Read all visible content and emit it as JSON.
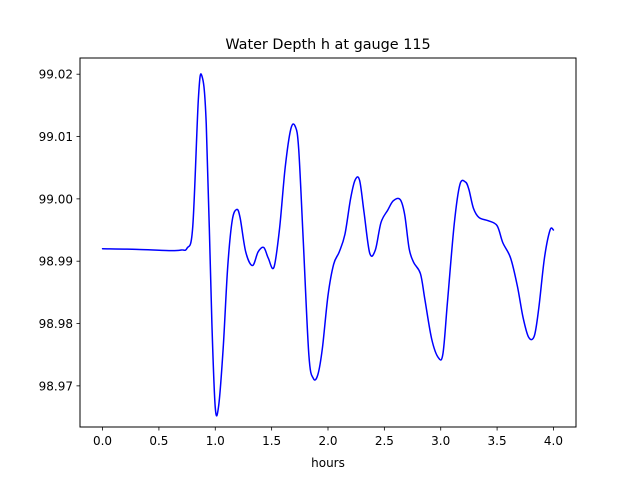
{
  "chart_data": {
    "type": "line",
    "title": "Water Depth h at gauge 115",
    "xlabel": "hours",
    "ylabel": "",
    "xlim": [
      -0.2,
      4.2
    ],
    "ylim": [
      98.9634,
      99.0226
    ],
    "xticks": [
      "0.0",
      "0.5",
      "1.0",
      "1.5",
      "2.0",
      "2.5",
      "3.0",
      "3.5",
      "4.0"
    ],
    "xtick_values": [
      0,
      0.5,
      1.0,
      1.5,
      2.0,
      2.5,
      3.0,
      3.5,
      4.0
    ],
    "yticks": [
      "98.97",
      "98.98",
      "98.99",
      "99.00",
      "99.01",
      "99.02"
    ],
    "ytick_values": [
      98.97,
      98.98,
      98.99,
      99.0,
      99.01,
      99.02
    ],
    "grid": false,
    "series": [
      {
        "color": "#0000ff",
        "x": [
          0.0,
          0.3,
          0.6,
          0.7,
          0.75,
          0.8,
          0.85,
          0.88,
          0.92,
          0.97,
          1.0,
          1.03,
          1.07,
          1.11,
          1.15,
          1.19,
          1.22,
          1.27,
          1.33,
          1.38,
          1.43,
          1.47,
          1.52,
          1.57,
          1.62,
          1.67,
          1.71,
          1.74,
          1.78,
          1.83,
          1.87,
          1.91,
          1.95,
          2.0,
          2.05,
          2.1,
          2.15,
          2.2,
          2.24,
          2.28,
          2.32,
          2.37,
          2.42,
          2.47,
          2.53,
          2.58,
          2.64,
          2.68,
          2.72,
          2.76,
          2.82,
          2.86,
          2.92,
          2.98,
          3.02,
          3.06,
          3.12,
          3.17,
          3.22,
          3.25,
          3.29,
          3.34,
          3.42,
          3.5,
          3.55,
          3.62,
          3.68,
          3.73,
          3.78,
          3.83,
          3.87,
          3.92,
          3.97,
          4.0
        ],
        "y": [
          98.992,
          98.9919,
          98.9917,
          98.9918,
          98.9921,
          98.9955,
          99.016,
          99.0198,
          99.012,
          98.98,
          98.9665,
          98.9668,
          98.976,
          98.989,
          98.9965,
          98.9983,
          98.997,
          98.9915,
          98.9893,
          98.9915,
          98.9922,
          98.9905,
          98.989,
          98.9952,
          99.005,
          99.0112,
          99.0116,
          99.008,
          98.9935,
          98.975,
          98.9712,
          98.9718,
          98.976,
          98.9845,
          98.9895,
          98.9915,
          98.9943,
          99.0,
          99.003,
          99.003,
          98.9978,
          98.9913,
          98.9918,
          98.9962,
          98.9982,
          98.9997,
          98.9999,
          98.9975,
          98.992,
          98.9898,
          98.988,
          98.9838,
          98.9775,
          98.9745,
          98.9752,
          98.9835,
          98.996,
          99.0023,
          99.0027,
          99.0015,
          98.9985,
          98.997,
          98.9965,
          98.9957,
          98.993,
          98.9905,
          98.986,
          98.981,
          98.9778,
          98.978,
          98.9825,
          98.9905,
          98.995,
          98.995
        ]
      }
    ]
  }
}
